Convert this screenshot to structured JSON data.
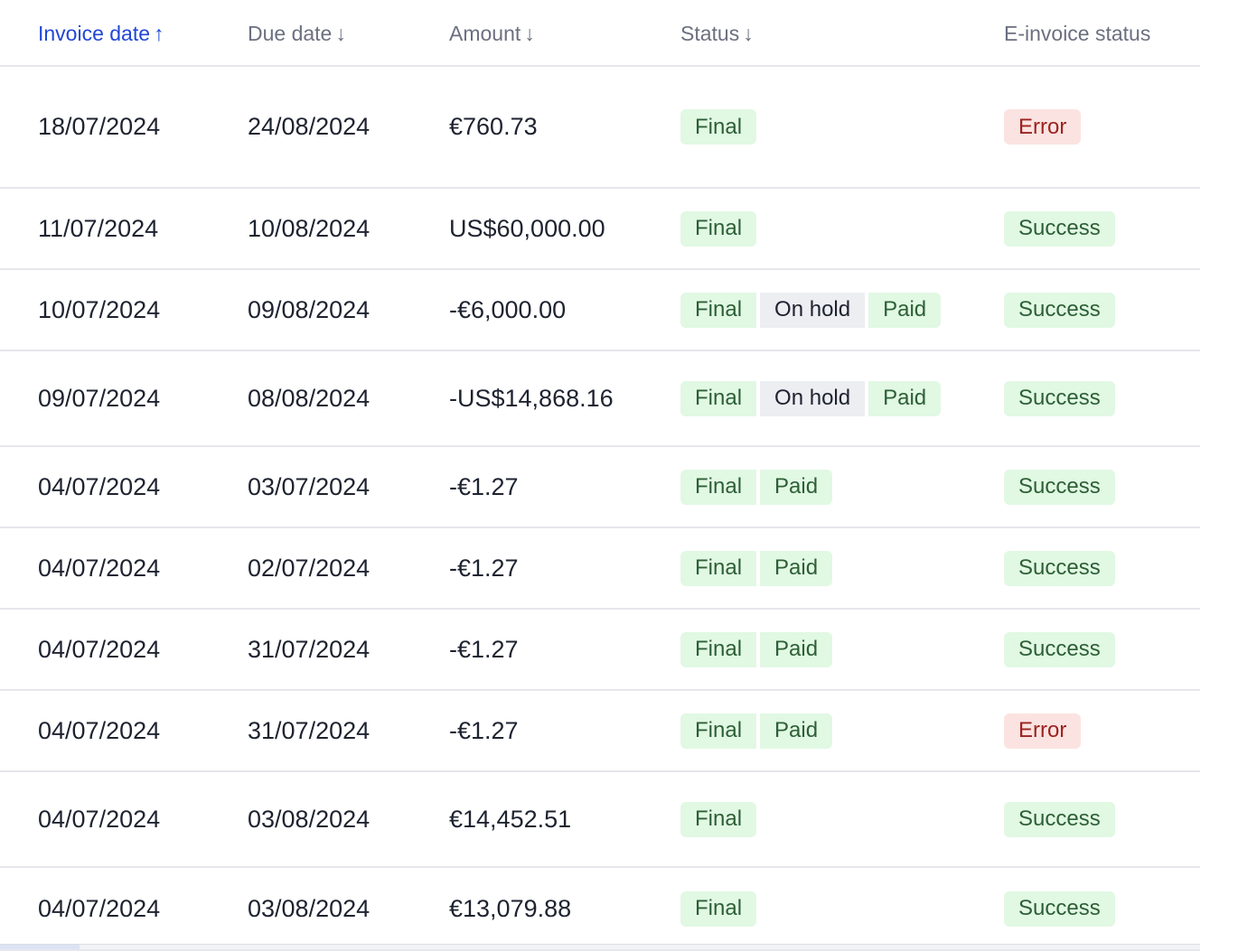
{
  "columns": [
    {
      "label": "Invoice date",
      "sort": "↑",
      "active": true
    },
    {
      "label": "Due date",
      "sort": "↓",
      "active": false
    },
    {
      "label": "Amount",
      "sort": "↓",
      "active": false
    },
    {
      "label": "Status",
      "sort": "↓",
      "active": false
    },
    {
      "label": "E-invoice status",
      "sort": "",
      "active": false
    }
  ],
  "colors": {
    "accent": "#2147d6",
    "success_bg": "#e1f8e3",
    "error_bg": "#fbe3e1",
    "neutral_bg": "#eceef2"
  },
  "rows": [
    {
      "invoice_date": "18/07/2024",
      "due_date": "24/08/2024",
      "amount": "€760.73",
      "status": [
        {
          "label": "Final",
          "tone": "green"
        }
      ],
      "einvoice": {
        "label": "Error",
        "tone": "red"
      }
    },
    {
      "invoice_date": "11/07/2024",
      "due_date": "10/08/2024",
      "amount": "US$60,000.00",
      "status": [
        {
          "label": "Final",
          "tone": "green"
        }
      ],
      "einvoice": {
        "label": "Success",
        "tone": "green"
      }
    },
    {
      "invoice_date": "10/07/2024",
      "due_date": "09/08/2024",
      "amount": "-€6,000.00",
      "status": [
        {
          "label": "Final",
          "tone": "green"
        },
        {
          "label": "On hold",
          "tone": "gray"
        },
        {
          "label": "Paid",
          "tone": "green"
        }
      ],
      "einvoice": {
        "label": "Success",
        "tone": "green"
      }
    },
    {
      "invoice_date": "09/07/2024",
      "due_date": "08/08/2024",
      "amount": "-US$14,868.16",
      "status": [
        {
          "label": "Final",
          "tone": "green"
        },
        {
          "label": "On hold",
          "tone": "gray"
        },
        {
          "label": "Paid",
          "tone": "green"
        }
      ],
      "einvoice": {
        "label": "Success",
        "tone": "green"
      }
    },
    {
      "invoice_date": "04/07/2024",
      "due_date": "03/07/2024",
      "amount": "-€1.27",
      "status": [
        {
          "label": "Final",
          "tone": "green"
        },
        {
          "label": "Paid",
          "tone": "green"
        }
      ],
      "einvoice": {
        "label": "Success",
        "tone": "green"
      }
    },
    {
      "invoice_date": "04/07/2024",
      "due_date": "02/07/2024",
      "amount": "-€1.27",
      "status": [
        {
          "label": "Final",
          "tone": "green"
        },
        {
          "label": "Paid",
          "tone": "green"
        }
      ],
      "einvoice": {
        "label": "Success",
        "tone": "green"
      }
    },
    {
      "invoice_date": "04/07/2024",
      "due_date": "31/07/2024",
      "amount": "-€1.27",
      "status": [
        {
          "label": "Final",
          "tone": "green"
        },
        {
          "label": "Paid",
          "tone": "green"
        }
      ],
      "einvoice": {
        "label": "Success",
        "tone": "green"
      }
    },
    {
      "invoice_date": "04/07/2024",
      "due_date": "31/07/2024",
      "amount": "-€1.27",
      "status": [
        {
          "label": "Final",
          "tone": "green"
        },
        {
          "label": "Paid",
          "tone": "green"
        }
      ],
      "einvoice": {
        "label": "Error",
        "tone": "red"
      }
    },
    {
      "invoice_date": "04/07/2024",
      "due_date": "03/08/2024",
      "amount": "€14,452.51",
      "status": [
        {
          "label": "Final",
          "tone": "green"
        }
      ],
      "einvoice": {
        "label": "Success",
        "tone": "green"
      }
    },
    {
      "invoice_date": "04/07/2024",
      "due_date": "03/08/2024",
      "amount": "€13,079.88",
      "status": [
        {
          "label": "Final",
          "tone": "green"
        }
      ],
      "einvoice": {
        "label": "Success",
        "tone": "green"
      }
    }
  ]
}
